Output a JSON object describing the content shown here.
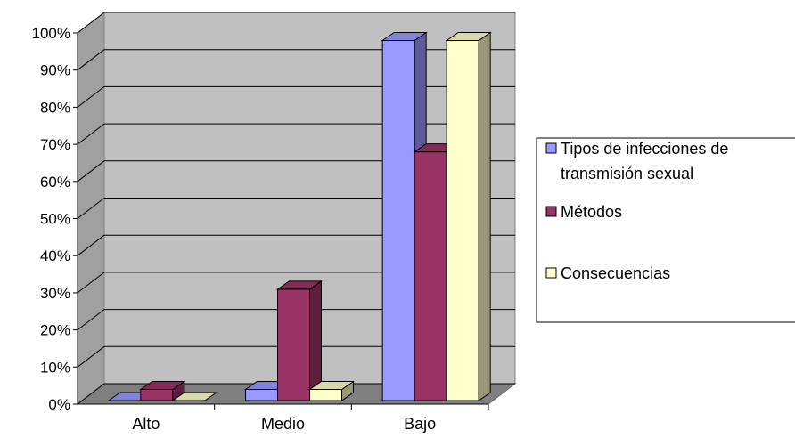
{
  "chart_data": {
    "type": "bar",
    "style": "3d-clustered-column",
    "categories": [
      "Alto",
      "Medio",
      "Bajo"
    ],
    "series": [
      {
        "name": "Tipos de infecciones de transmisión sexual",
        "name_lines": [
          "Tipos de infecciones de",
          "transmisión sexual"
        ],
        "values": [
          0,
          3,
          97
        ],
        "color": "#9999FF"
      },
      {
        "name": "Métodos",
        "name_lines": [
          "Métodos"
        ],
        "values": [
          3,
          30,
          67
        ],
        "color": "#993366"
      },
      {
        "name": "Consecuencias",
        "name_lines": [
          "Consecuencias"
        ],
        "values": [
          0,
          3,
          97
        ],
        "color": "#FFFFCC"
      }
    ],
    "yticks": [
      "0%",
      "10%",
      "20%",
      "30%",
      "40%",
      "50%",
      "60%",
      "70%",
      "80%",
      "90%",
      "100%"
    ],
    "ylim": [
      0,
      100
    ],
    "grid": true,
    "wall_color": "#C0C0C0",
    "legend_position": "right"
  }
}
